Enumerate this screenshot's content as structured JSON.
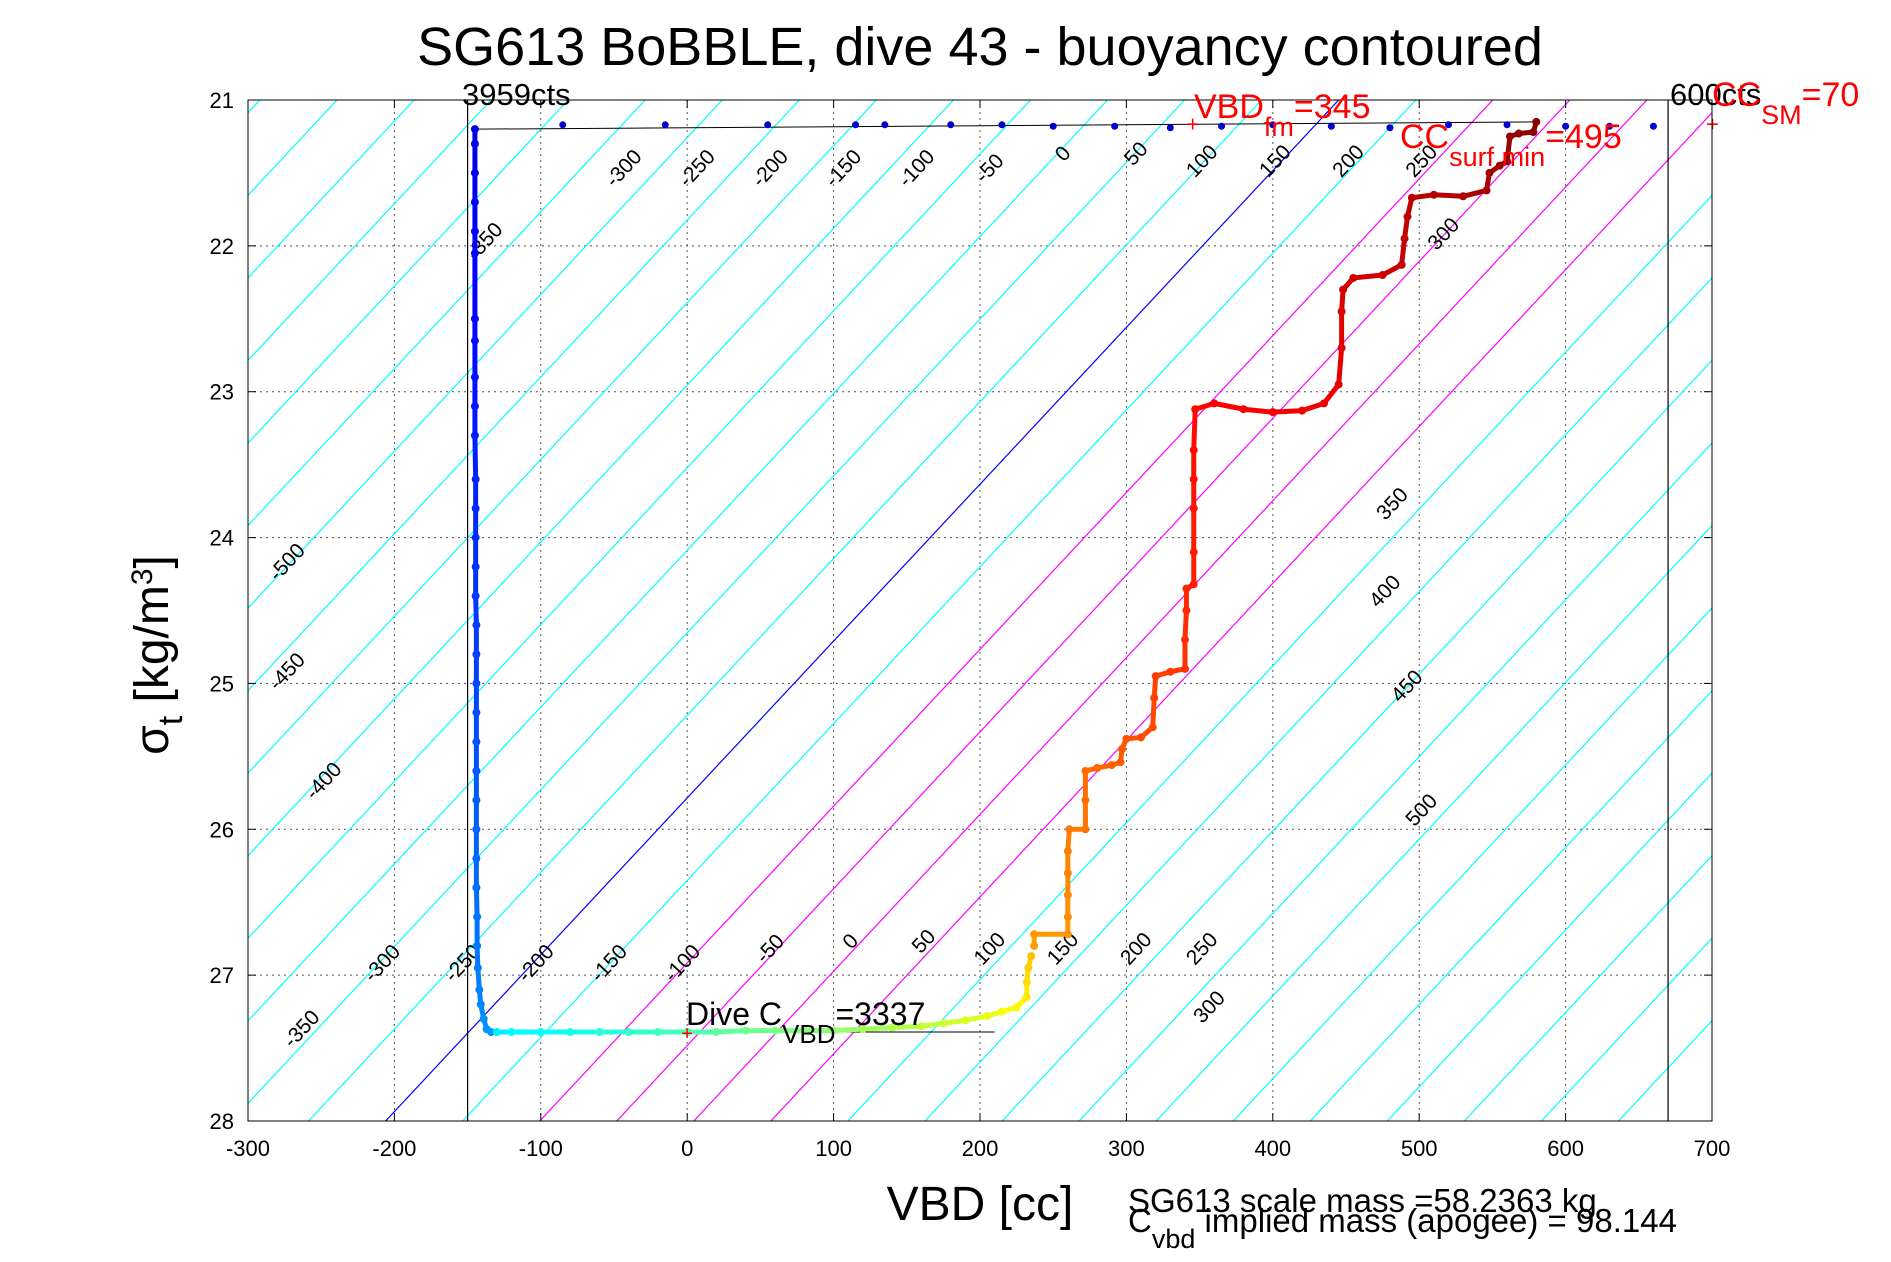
{
  "chart_data": {
    "type": "scatter",
    "title": "SG613 BoBBLE, dive 43 - buoyancy contoured",
    "xlabel": "VBD [cc]",
    "ylabel": "σt [kg/m3]",
    "xlim": [
      -300,
      700
    ],
    "ylim": [
      21,
      28
    ],
    "y_reversed": true,
    "grid": true,
    "x_ticks": [
      "-300",
      "-200",
      "-100",
      "0",
      "100",
      "200",
      "300",
      "400",
      "500",
      "600",
      "700"
    ],
    "y_ticks": [
      "21",
      "22",
      "23",
      "24",
      "25",
      "26",
      "27",
      "28"
    ],
    "footer": {
      "scale_mass": "SG613 scale mass =58.2363 kg",
      "implied_mass_pre": "C",
      "implied_mass_sub": "vbd",
      "implied_mass_post": " implied mass (apogee) = 98.144"
    },
    "annotations": {
      "min_vbd_counts": "3959cts",
      "max_vbd_counts": "600cts",
      "dive_c_vbd_pre": "Dive C",
      "dive_c_vbd_sub": "VBD",
      "dive_c_vbd_post": "=3337",
      "vbd_fm_pre": "VBD",
      "vbd_fm_sub": "fm",
      "vbd_fm_post": "=345",
      "cc_surf_min_pre": "CC",
      "cc_surf_min_sub": "surf min",
      "cc_surf_min_post": "=495",
      "cc_sm_pre": "CC",
      "cc_sm_sub": "SM",
      "cc_sm_post": "=70"
    },
    "reference_lines": {
      "vbd_min": -150,
      "vbd_max": 670
    },
    "buoyancy_contours": {
      "slope_cc_per_kgm3": -93,
      "color_cyan": "#00ffff",
      "color_zero": "#0000ff",
      "color_magenta": "#ff00ff",
      "zero_intercept_at_sigma21": 445,
      "levels": [
        -500,
        -450,
        -400,
        -350,
        -300,
        -250,
        -200,
        -150,
        -100,
        -50,
        0,
        50,
        100,
        150,
        200,
        250,
        300,
        350,
        400,
        450,
        500
      ],
      "magenta_levels": [
        100,
        150,
        200,
        250
      ],
      "upper_label_row": [
        {
          "text": "-350",
          "vbd": -135,
          "sigma": 22.0
        },
        {
          "text": "-300",
          "vbd": -40,
          "sigma": 21.5
        },
        {
          "text": "-250",
          "vbd": 10,
          "sigma": 21.5
        },
        {
          "text": "-200",
          "vbd": 60,
          "sigma": 21.5
        },
        {
          "text": "-150",
          "vbd": 110,
          "sigma": 21.5
        },
        {
          "text": "-100",
          "vbd": 160,
          "sigma": 21.5
        },
        {
          "text": "-50",
          "vbd": 210,
          "sigma": 21.5
        },
        {
          "text": "0",
          "vbd": 260,
          "sigma": 21.4
        },
        {
          "text": "50",
          "vbd": 310,
          "sigma": 21.4
        },
        {
          "text": "100",
          "vbd": 355,
          "sigma": 21.45
        },
        {
          "text": "150",
          "vbd": 405,
          "sigma": 21.45
        },
        {
          "text": "200",
          "vbd": 455,
          "sigma": 21.45
        },
        {
          "text": "250",
          "vbd": 505,
          "sigma": 21.45
        },
        {
          "text": "300",
          "vbd": 520,
          "sigma": 21.95
        }
      ],
      "right_label_column": [
        {
          "text": "350",
          "vbd": 485,
          "sigma": 23.8
        },
        {
          "text": "400",
          "vbd": 480,
          "sigma": 24.4
        },
        {
          "text": "450",
          "vbd": 495,
          "sigma": 25.05
        },
        {
          "text": "500",
          "vbd": 505,
          "sigma": 25.9
        }
      ],
      "left_label_column": [
        {
          "text": "-500",
          "vbd": -270,
          "sigma": 24.2
        },
        {
          "text": "-450",
          "vbd": -270,
          "sigma": 24.95
        },
        {
          "text": "-400",
          "vbd": -245,
          "sigma": 25.7
        },
        {
          "text": "-300",
          "vbd": -205,
          "sigma": 26.95
        },
        {
          "text": "-350",
          "vbd": -260,
          "sigma": 27.4
        }
      ],
      "lower_label_row": [
        {
          "text": "-250",
          "vbd": -150,
          "sigma": 26.95
        },
        {
          "text": "-200",
          "vbd": -100,
          "sigma": 26.95
        },
        {
          "text": "-150",
          "vbd": -50,
          "sigma": 26.95
        },
        {
          "text": "-100",
          "vbd": 0,
          "sigma": 26.95
        },
        {
          "text": "-50",
          "vbd": 60,
          "sigma": 26.85
        },
        {
          "text": "0",
          "vbd": 115,
          "sigma": 26.8
        },
        {
          "text": "50",
          "vbd": 165,
          "sigma": 26.8
        },
        {
          "text": "100",
          "vbd": 210,
          "sigma": 26.85
        },
        {
          "text": "150",
          "vbd": 260,
          "sigma": 26.85
        },
        {
          "text": "200",
          "vbd": 310,
          "sigma": 26.85
        },
        {
          "text": "250",
          "vbd": 355,
          "sigma": 26.85
        },
        {
          "text": "300",
          "vbd": 360,
          "sigma": 27.25
        }
      ]
    },
    "series": [
      {
        "segment": "dive-descent",
        "points": [
          [
            -145,
            21.2
          ],
          [
            -145,
            21.3
          ],
          [
            -145,
            21.5
          ],
          [
            -145,
            21.7
          ],
          [
            -145,
            21.9
          ],
          [
            -145,
            22.05
          ],
          [
            -145,
            22.5
          ],
          [
            -145,
            22.65
          ],
          [
            -145,
            22.9
          ],
          [
            -145,
            23.1
          ],
          [
            -145,
            23.3
          ],
          [
            -144.5,
            23.6
          ],
          [
            -144.5,
            23.8
          ],
          [
            -144.5,
            24.0
          ],
          [
            -144.5,
            24.2
          ],
          [
            -144.5,
            24.4
          ],
          [
            -144,
            24.6
          ],
          [
            -144,
            24.8
          ],
          [
            -144,
            25.0
          ],
          [
            -144,
            25.2
          ],
          [
            -144,
            25.4
          ],
          [
            -144,
            25.6
          ],
          [
            -144,
            25.8
          ],
          [
            -144,
            26.0
          ],
          [
            -144,
            26.2
          ],
          [
            -144,
            26.4
          ],
          [
            -143.5,
            26.6
          ],
          [
            -143.5,
            26.8
          ],
          [
            -143,
            26.95
          ],
          [
            -142,
            27.1
          ],
          [
            -141,
            27.2
          ],
          [
            -139,
            27.3
          ],
          [
            -137,
            27.37
          ],
          [
            -134,
            27.39
          ]
        ]
      },
      {
        "segment": "apogee",
        "points": [
          [
            -130,
            27.39
          ],
          [
            -120,
            27.39
          ],
          [
            -100,
            27.39
          ],
          [
            -80,
            27.39
          ],
          [
            -60,
            27.39
          ],
          [
            -40,
            27.39
          ],
          [
            -20,
            27.39
          ],
          [
            0,
            27.39
          ],
          [
            20,
            27.39
          ],
          [
            40,
            27.38
          ],
          [
            60,
            27.38
          ],
          [
            80,
            27.38
          ],
          [
            100,
            27.38
          ],
          [
            120,
            27.37
          ],
          [
            140,
            27.36
          ],
          [
            160,
            27.35
          ],
          [
            175,
            27.33
          ],
          [
            190,
            27.31
          ],
          [
            205,
            27.28
          ],
          [
            215,
            27.25
          ],
          [
            225,
            27.22
          ],
          [
            232,
            27.15
          ],
          [
            232,
            27.05
          ],
          [
            233,
            26.95
          ],
          [
            235,
            26.87
          ]
        ]
      },
      {
        "segment": "climb",
        "points": [
          [
            237,
            26.8
          ],
          [
            237,
            26.72
          ],
          [
            260,
            26.72
          ],
          [
            260,
            26.6
          ],
          [
            260,
            26.45
          ],
          [
            260,
            26.3
          ],
          [
            260,
            26.15
          ],
          [
            261,
            26.0
          ],
          [
            272,
            26.0
          ],
          [
            272,
            25.8
          ],
          [
            272,
            25.6
          ],
          [
            280,
            25.58
          ],
          [
            290,
            25.56
          ],
          [
            296,
            25.54
          ],
          [
            297,
            25.45
          ],
          [
            300,
            25.38
          ],
          [
            310,
            25.37
          ],
          [
            318,
            25.3
          ],
          [
            319,
            25.1
          ],
          [
            320,
            24.95
          ],
          [
            330,
            24.92
          ],
          [
            340,
            24.9
          ],
          [
            340,
            24.7
          ],
          [
            341,
            24.5
          ],
          [
            341,
            24.35
          ],
          [
            346,
            24.32
          ],
          [
            346,
            24.1
          ],
          [
            346,
            23.8
          ],
          [
            346,
            23.6
          ],
          [
            346,
            23.4
          ],
          [
            347,
            23.12
          ],
          [
            360,
            23.08
          ],
          [
            380,
            23.12
          ],
          [
            400,
            23.14
          ],
          [
            420,
            23.13
          ],
          [
            435,
            23.08
          ],
          [
            445,
            22.95
          ],
          [
            447,
            22.7
          ],
          [
            447,
            22.45
          ],
          [
            448,
            22.3
          ],
          [
            455,
            22.22
          ],
          [
            475,
            22.2
          ],
          [
            488,
            22.13
          ],
          [
            490,
            21.95
          ],
          [
            492,
            21.8
          ],
          [
            495,
            21.67
          ],
          [
            510,
            21.65
          ],
          [
            530,
            21.66
          ],
          [
            546,
            21.62
          ],
          [
            548,
            21.5
          ],
          [
            555,
            21.45
          ],
          [
            560,
            21.42
          ],
          [
            562,
            21.25
          ],
          [
            568,
            21.23
          ],
          [
            578,
            21.22
          ],
          [
            580,
            21.15
          ]
        ]
      },
      {
        "segment": "surface",
        "points": [
          [
            -85,
            21.17
          ],
          [
            -15,
            21.17
          ],
          [
            55,
            21.17
          ],
          [
            115,
            21.17
          ],
          [
            135,
            21.17
          ],
          [
            180,
            21.17
          ],
          [
            215,
            21.17
          ],
          [
            250,
            21.18
          ],
          [
            292,
            21.18
          ],
          [
            330,
            21.19
          ],
          [
            365,
            21.18
          ],
          [
            400,
            21.17
          ],
          [
            440,
            21.18
          ],
          [
            480,
            21.19
          ],
          [
            520,
            21.17
          ],
          [
            560,
            21.17
          ],
          [
            600,
            21.18
          ],
          [
            630,
            21.18
          ],
          [
            660,
            21.18
          ]
        ]
      }
    ]
  }
}
